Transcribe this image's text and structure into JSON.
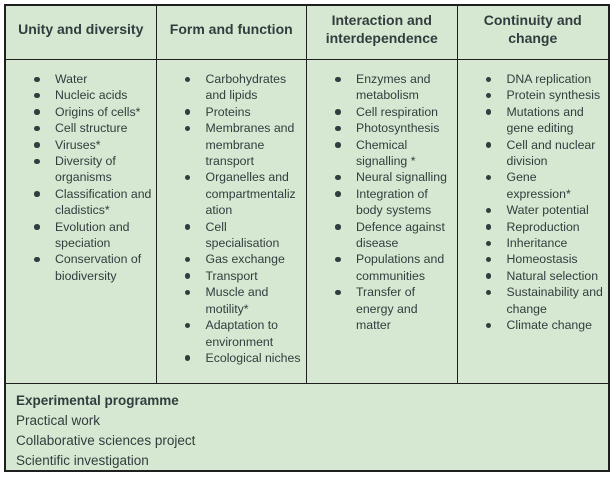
{
  "colors": {
    "cell_bg": "#d6e8d1",
    "border": "#1f1f1f",
    "text": "#333c3e"
  },
  "table": {
    "columns": [
      {
        "header": "Unity and diversity",
        "items": [
          "Water",
          "Nucleic acids",
          "Origins of cells*",
          "Cell structure",
          "Viruses*",
          "Diversity of organisms",
          "Classification and cladistics*",
          "Evolution and speciation",
          "Conservation of biodiversity"
        ]
      },
      {
        "header": "Form and function",
        "items": [
          "Carbohydrates and lipids",
          "Proteins",
          "Membranes and membrane transport",
          "Organelles and compartmentalization",
          "Cell specialisation",
          "Gas exchange",
          "Transport",
          "Muscle and motility*",
          "Adaptation to environment",
          "Ecological niches"
        ]
      },
      {
        "header": "Interaction and interdependence",
        "items": [
          "Enzymes and metabolism",
          "Cell respiration",
          "Photosynthesis",
          "Chemical signalling *",
          "Neural signalling",
          "Integration of body systems",
          "Defence against disease",
          "Populations and communities",
          "Transfer of energy and matter"
        ]
      },
      {
        "header": "Continuity and change",
        "items": [
          "DNA replication",
          "Protein synthesis",
          "Mutations and gene editing",
          "Cell and nuclear division",
          "Gene expression*",
          "Water potential",
          "Reproduction",
          "Inheritance",
          "Homeostasis",
          "Natural selection",
          "Sustainability and change",
          "Climate change"
        ]
      }
    ],
    "footer": {
      "title": "Experimental programme",
      "lines": [
        "Practical work",
        "Collaborative sciences project",
        "Scientific investigation"
      ]
    }
  }
}
